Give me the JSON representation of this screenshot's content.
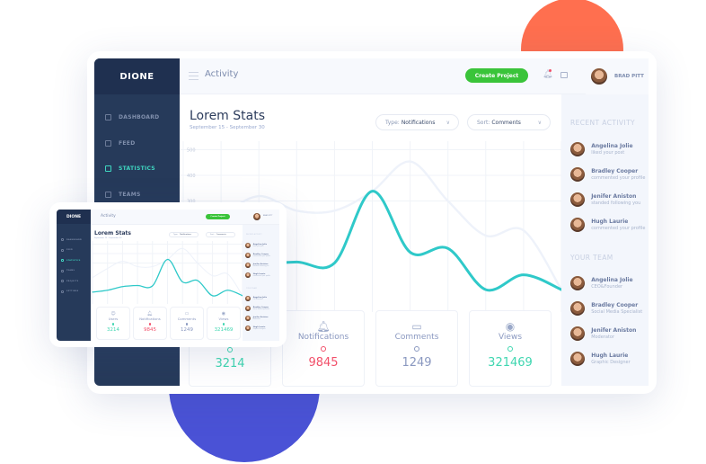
{
  "brand": "DIONE",
  "header": {
    "title": "Activity",
    "create_button": "Create Project",
    "user_name": "BRAD PITT"
  },
  "sidebar": {
    "items": [
      {
        "label": "DASHBOARD",
        "icon": "dashboard-icon"
      },
      {
        "label": "FEED",
        "icon": "feed-icon"
      },
      {
        "label": "STATISTICS",
        "icon": "statistics-icon",
        "active": true
      },
      {
        "label": "TEAMS",
        "icon": "teams-icon"
      },
      {
        "label": "PROJECTS",
        "icon": "projects-icon"
      },
      {
        "label": "SETTINGS",
        "icon": "settings-icon"
      }
    ]
  },
  "main": {
    "title": "Lorem Stats",
    "date_range": "September 15 - September 30",
    "type_filter": {
      "key": "Type:",
      "value": "Notifications"
    },
    "sort_filter": {
      "key": "Sort:",
      "value": "Comments"
    }
  },
  "stats": [
    {
      "label": "Users",
      "value": "3214",
      "color": "#3fd6b0",
      "icon": "user-icon"
    },
    {
      "label": "Notifications",
      "value": "9845",
      "color": "#f2506a",
      "icon": "bell-icon"
    },
    {
      "label": "Comments",
      "value": "1249",
      "color": "#8a98c0",
      "icon": "comment-icon"
    },
    {
      "label": "Views",
      "value": "321469",
      "color": "#3fd6b0",
      "icon": "eye-icon"
    }
  ],
  "recent_activity": {
    "title": "RECENT ACTIVITY",
    "items": [
      {
        "name": "Angelina Jolie",
        "text": "liked your post"
      },
      {
        "name": "Bradley Cooper",
        "text": "commented your profile"
      },
      {
        "name": "Jenifer Aniston",
        "text": "standed following you"
      },
      {
        "name": "Hugh Laurie",
        "text": "commented your profile"
      }
    ]
  },
  "your_team": {
    "title": "YOUR TEAM",
    "items": [
      {
        "name": "Angelina Jolie",
        "text": "CEO&Founder"
      },
      {
        "name": "Bradley Cooper",
        "text": "Social Media Specialist"
      },
      {
        "name": "Jenifer Aniston",
        "text": "Moderator"
      },
      {
        "name": "Hugh Laurie",
        "text": "Graphic Designer"
      }
    ]
  },
  "colors": {
    "sidebar": "#263a5a",
    "accent": "#3fd6c0",
    "button": "#3ac43a",
    "orange_circle": "#ff6f4f",
    "blue_circle": "#4a52d6"
  },
  "chart_data": {
    "type": "line",
    "yticks": [
      500,
      400,
      300
    ],
    "ylim": [
      -100,
      500
    ],
    "grid": true,
    "x": [
      0,
      1,
      2,
      3,
      4,
      5,
      6,
      7,
      8,
      9,
      10
    ],
    "series": [
      {
        "values": [
          -8,
          12,
          50,
          62,
          58,
          338,
          100,
          115,
          -46,
          12,
          -46
        ],
        "color": "#2fc9c9"
      },
      {
        "values": [
          146,
          242,
          319,
          262,
          262,
          338,
          454,
          300,
          165,
          185,
          -46
        ],
        "color": "#eef2fa"
      }
    ]
  }
}
